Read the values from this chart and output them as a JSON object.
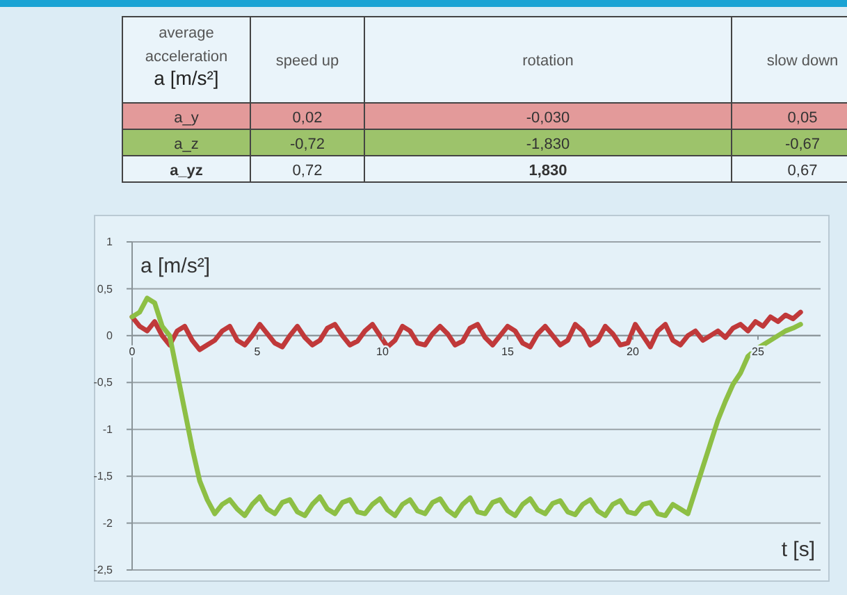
{
  "chart_data": [
    {
      "type": "other",
      "title": "average acceleration a [m/s²]",
      "categories": [
        "speed up",
        "rotation",
        "slow down"
      ],
      "y_categories": [
        "a_y",
        "a_z",
        "a_yz"
      ],
      "cell_labels": [
        [
          "0,02",
          "-0,030",
          "0,05"
        ],
        [
          "-0,72",
          "-1,830",
          "-0,67"
        ],
        [
          "0,72",
          "1,830",
          "0,67"
        ]
      ]
    },
    {
      "type": "line",
      "xlabel": "t [s]",
      "ylabel": "a [m/s²]",
      "xlim": [
        0,
        27.5
      ],
      "ylim": [
        -2.5,
        1
      ],
      "xticks": [
        0,
        5,
        10,
        15,
        20,
        25
      ],
      "yticks": [
        {
          "value": -2.5,
          "label": "-2,5"
        },
        -2,
        {
          "value": -1.5,
          "label": "-1,5"
        },
        -1,
        {
          "value": -0.5,
          "label": "-0,5"
        },
        0,
        {
          "value": 0.5,
          "label": "0,5"
        },
        1
      ],
      "grid": "y",
      "marker": "none",
      "line_style": "solid",
      "x": [
        0,
        0.3,
        0.6,
        0.9,
        1.2,
        1.5,
        1.8,
        2.1,
        2.4,
        2.7,
        3,
        3.3,
        3.6,
        3.9,
        4.2,
        4.5,
        4.8,
        5.1,
        5.4,
        5.7,
        6,
        6.3,
        6.6,
        6.9,
        7.2,
        7.5,
        7.8,
        8.1,
        8.4,
        8.7,
        9,
        9.3,
        9.6,
        9.9,
        10.2,
        10.5,
        10.8,
        11.1,
        11.4,
        11.7,
        12,
        12.3,
        12.6,
        12.9,
        13.2,
        13.5,
        13.8,
        14.1,
        14.4,
        14.7,
        15,
        15.3,
        15.6,
        15.9,
        16.2,
        16.5,
        16.8,
        17.1,
        17.4,
        17.7,
        18,
        18.3,
        18.6,
        18.9,
        19.2,
        19.5,
        19.8,
        20.1,
        20.4,
        20.7,
        21,
        21.3,
        21.6,
        21.9,
        22.2,
        22.5,
        22.8,
        23.1,
        23.4,
        23.7,
        24,
        24.3,
        24.6,
        24.9,
        25.2,
        25.5,
        25.8,
        26.1,
        26.4,
        26.7
      ],
      "series": [
        {
          "color": "#c0393a",
          "values": [
            0.2,
            0.1,
            0.05,
            0.15,
            0,
            -0.1,
            0.05,
            0.1,
            -0.05,
            -0.15,
            -0.1,
            -0.05,
            0.05,
            0.1,
            -0.05,
            -0.1,
            0,
            0.12,
            0.02,
            -0.08,
            -0.12,
            0,
            0.1,
            -0.02,
            -0.1,
            -0.05,
            0.08,
            0.12,
            0,
            -0.1,
            -0.06,
            0.05,
            0.12,
            0,
            -0.12,
            -0.05,
            0.1,
            0.05,
            -0.08,
            -0.1,
            0.02,
            0.1,
            0.02,
            -0.1,
            -0.06,
            0.08,
            0.12,
            -0.02,
            -0.1,
            0,
            0.1,
            0.05,
            -0.08,
            -0.12,
            0.02,
            0.1,
            0,
            -0.1,
            -0.05,
            0.12,
            0.05,
            -0.1,
            -0.05,
            0.1,
            0.02,
            -0.1,
            -0.08,
            0.12,
            0,
            -0.12,
            0.05,
            0.12,
            -0.05,
            -0.1,
            0,
            0.05,
            -0.05,
            0,
            0.05,
            -0.02,
            0.08,
            0.12,
            0.05,
            0.15,
            0.1,
            0.2,
            0.15,
            0.22,
            0.18,
            0.25
          ]
        },
        {
          "color": "#8dbf45",
          "values": [
            0.2,
            0.25,
            0.4,
            0.35,
            0.1,
            0,
            -0.4,
            -0.8,
            -1.2,
            -1.55,
            -1.75,
            -1.9,
            -1.8,
            -1.75,
            -1.85,
            -1.92,
            -1.8,
            -1.72,
            -1.85,
            -1.9,
            -1.78,
            -1.75,
            -1.88,
            -1.92,
            -1.8,
            -1.72,
            -1.85,
            -1.9,
            -1.78,
            -1.75,
            -1.88,
            -1.9,
            -1.8,
            -1.74,
            -1.86,
            -1.92,
            -1.8,
            -1.75,
            -1.87,
            -1.9,
            -1.78,
            -1.74,
            -1.86,
            -1.92,
            -1.8,
            -1.73,
            -1.88,
            -1.9,
            -1.78,
            -1.75,
            -1.87,
            -1.92,
            -1.8,
            -1.74,
            -1.86,
            -1.9,
            -1.79,
            -1.76,
            -1.88,
            -1.91,
            -1.8,
            -1.75,
            -1.87,
            -1.92,
            -1.8,
            -1.76,
            -1.88,
            -1.9,
            -1.8,
            -1.78,
            -1.9,
            -1.92,
            -1.8,
            -1.85,
            -1.9,
            -1.65,
            -1.4,
            -1.15,
            -0.9,
            -0.7,
            -0.52,
            -0.4,
            -0.22,
            -0.15,
            -0.1,
            -0.05,
            0,
            0.05,
            0.08,
            0.12
          ]
        }
      ]
    }
  ]
}
